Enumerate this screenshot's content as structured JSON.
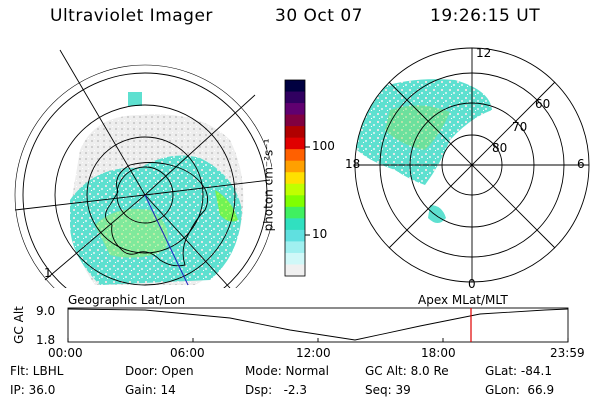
{
  "header": {
    "title": "Ultraviolet Imager",
    "date": "30 Oct 07",
    "time": "19:26:15 UT"
  },
  "colorbar": {
    "label": "photon cm⁻²s⁻¹",
    "ticks": [
      "100",
      "10"
    ],
    "scale": "log"
  },
  "left_map": {
    "caption": "Geographic Lat/Lon",
    "edge_label": "1"
  },
  "right_map": {
    "caption": "Apex MLat/MLT",
    "mlt_labels": [
      "12",
      "18",
      "6",
      "0"
    ],
    "lat_labels": [
      "60",
      "70",
      "80"
    ]
  },
  "altitude_panel": {
    "ylabel": "GC Alt",
    "yticks": [
      "9.0",
      "1.8"
    ],
    "xticks": [
      "00:00",
      "06:00",
      "12:00",
      "18:00",
      "23:59"
    ],
    "marker_color": "#e00000"
  },
  "footer": {
    "row1": [
      "Flt: LBHL",
      "Door: Open",
      "Mode: Normal",
      "GC Alt: 8.0 Re",
      "GLat: -84.1"
    ],
    "row2": [
      "IP: 36.0",
      "Gain: 14",
      "Dsp:   -2.3",
      "Seq: 39",
      "GLon:  66.9"
    ]
  },
  "colors": {
    "aurora_low": "#40e0d0",
    "aurora_high": "#7fff00",
    "faint": "#d8d8d8"
  }
}
